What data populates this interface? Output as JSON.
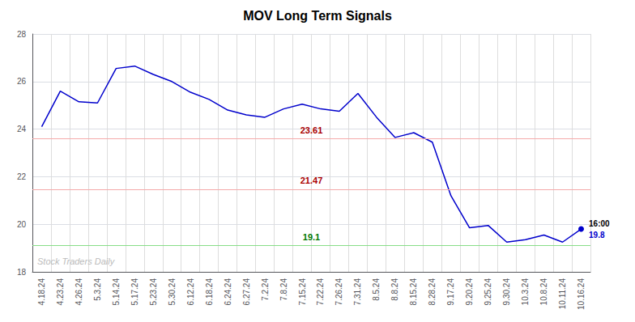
{
  "chart_data": {
    "type": "line",
    "title": "MOV Long Term Signals",
    "categories": [
      "4.18.24",
      "4.23.24",
      "4.26.24",
      "5.3.24",
      "5.14.24",
      "5.17.24",
      "5.23.24",
      "5.30.24",
      "6.12.24",
      "6.18.24",
      "6.24.24",
      "6.27.24",
      "7.2.24",
      "7.8.24",
      "7.15.24",
      "7.22.24",
      "7.26.24",
      "7.31.24",
      "8.5.24",
      "8.8.24",
      "8.15.24",
      "8.28.24",
      "9.17.24",
      "9.20.24",
      "9.25.24",
      "9.30.24",
      "10.3.24",
      "10.8.24",
      "10.11.24",
      "10.16.24"
    ],
    "values": [
      24.1,
      25.6,
      25.15,
      25.1,
      26.55,
      26.65,
      26.3,
      26.0,
      25.55,
      25.25,
      24.8,
      24.6,
      24.5,
      24.85,
      25.05,
      24.85,
      24.75,
      25.5,
      24.5,
      23.65,
      23.85,
      23.45,
      21.2,
      19.85,
      19.95,
      19.25,
      19.35,
      19.55,
      19.25,
      19.8
    ],
    "color": "#0000cc",
    "ylim": [
      18,
      28
    ],
    "yticks": [
      18,
      20,
      22,
      24,
      26,
      28
    ],
    "grid": true,
    "hlines": [
      {
        "y": 23.61,
        "label": "23.61",
        "color": "#f5aaaa",
        "label_color": "#aa0000"
      },
      {
        "y": 21.47,
        "label": "21.47",
        "color": "#f5aaaa",
        "label_color": "#aa0000"
      },
      {
        "y": 19.1,
        "label": "19.1",
        "color": "#88dd88",
        "label_color": "#007700"
      }
    ],
    "annotations": [
      {
        "text": "16:00",
        "color": "#000000"
      },
      {
        "text": "19.8",
        "color": "#0000cc"
      }
    ],
    "watermark": {
      "text": "Stock Traders Daily",
      "color": "#bbbbbb"
    }
  }
}
